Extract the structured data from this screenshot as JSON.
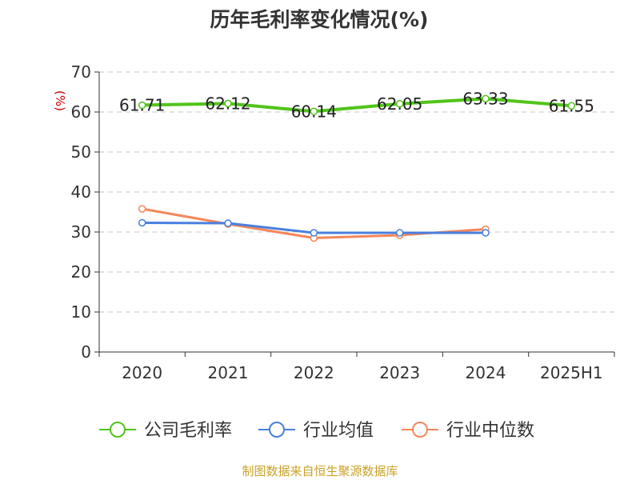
{
  "chart_data": {
    "type": "line",
    "title": "历年毛利率变化情况(%)",
    "ylabel": "(%)",
    "xlabel": "",
    "categories": [
      "2020",
      "2021",
      "2022",
      "2023",
      "2024",
      "2025H1"
    ],
    "ylim": [
      0,
      70
    ],
    "yticks": [
      "0",
      "10",
      "20",
      "30",
      "40",
      "50",
      "60",
      "70"
    ],
    "grid": true,
    "legend_position": "bottom",
    "series": [
      {
        "name": "公司毛利率",
        "color": "#52c41a",
        "values": [
          61.71,
          62.12,
          60.14,
          62.05,
          63.33,
          61.55
        ],
        "labels": [
          "61.71",
          "62.12",
          "60.14",
          "62.05",
          "63.33",
          "61.55"
        ]
      },
      {
        "name": "行业均值",
        "color": "#4a7fe0",
        "values": [
          32.3,
          32.2,
          29.8,
          29.8,
          29.8,
          null
        ]
      },
      {
        "name": "行业中位数",
        "color": "#f4875a",
        "values": [
          35.8,
          32.0,
          28.5,
          29.2,
          30.7,
          null
        ]
      }
    ],
    "source": "制图数据来自恒生聚源数据库"
  }
}
